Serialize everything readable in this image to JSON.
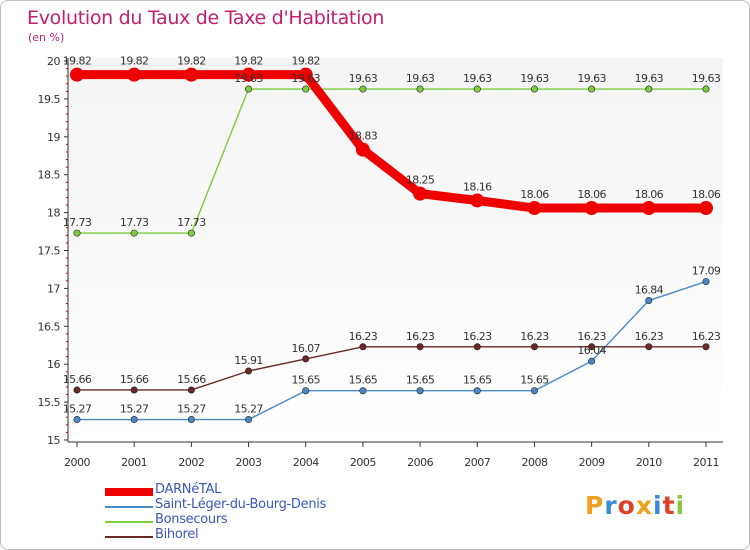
{
  "title": "Evolution du Taux de Taxe d'Habitation",
  "subtitle": "(en %)",
  "brand": {
    "text": "Proxiti",
    "letters": [
      "P",
      "r",
      "o",
      "x",
      "i",
      "t",
      "i"
    ],
    "colors": [
      "#f0a020",
      "#3b8ad8",
      "#e0402a",
      "#f0a020",
      "#3b8ad8",
      "#e0402a",
      "#8fc640"
    ]
  },
  "chart_data": {
    "type": "line",
    "title": "Evolution du Taux de Taxe d'Habitation",
    "ylabel": "(en %)",
    "xlabel": "",
    "x": [
      "2000",
      "2001",
      "2002",
      "2003",
      "2004",
      "2005",
      "2006",
      "2007",
      "2008",
      "2009",
      "2010",
      "2011"
    ],
    "ylim": [
      15,
      20
    ],
    "yticks": [
      "15",
      "15.5",
      "16",
      "16.5",
      "17",
      "17.5",
      "18",
      "18.5",
      "19",
      "19.5",
      "20"
    ],
    "yticks_values": [
      15,
      15.5,
      16,
      16.5,
      17,
      17.5,
      18,
      18.5,
      19,
      19.5,
      20
    ],
    "grid": false,
    "legend_position": "bottom-left",
    "series": [
      {
        "name": "DARNéTAL",
        "color": "#ee0000",
        "bold": true,
        "values": [
          19.82,
          19.82,
          19.82,
          19.82,
          19.82,
          18.83,
          18.25,
          18.16,
          18.06,
          18.06,
          18.06,
          18.06
        ],
        "labels": [
          "19.82",
          "19.82",
          "19.82",
          "19.82",
          "19.82",
          "18.83",
          "18.25",
          "18.16",
          "18.06",
          "18.06",
          "18.06",
          "18.06"
        ]
      },
      {
        "name": "Saint-Léger-du-Bourg-Denis",
        "color": "#4a88c8",
        "values": [
          15.27,
          15.27,
          15.27,
          15.27,
          15.65,
          15.65,
          15.65,
          15.65,
          15.65,
          16.04,
          16.84,
          17.09
        ],
        "labels": [
          "15.27",
          "15.27",
          "15.27",
          "15.27",
          "15.65",
          "15.65",
          "15.65",
          "15.65",
          "15.65",
          "16.04",
          "16.84",
          "17.09"
        ]
      },
      {
        "name": "Bonsecours",
        "color": "#7ccc3c",
        "values": [
          17.73,
          17.73,
          17.73,
          19.63,
          19.63,
          19.63,
          19.63,
          19.63,
          19.63,
          19.63,
          19.63,
          19.63
        ],
        "labels": [
          "17.73",
          "17.73",
          "17.73",
          "19.63",
          "19.63",
          "19.63",
          "19.63",
          "19.63",
          "19.63",
          "19.63",
          "19.63",
          "19.63"
        ]
      },
      {
        "name": "Bihorel",
        "color": "#6a2828",
        "values": [
          15.66,
          15.66,
          15.66,
          15.91,
          16.07,
          16.23,
          16.23,
          16.23,
          16.23,
          16.23,
          16.23,
          16.23
        ],
        "labels": [
          "15.66",
          "15.66",
          "15.66",
          "15.91",
          "16.07",
          "16.23",
          "16.23",
          "16.23",
          "16.23",
          "16.23",
          "16.23",
          "16.23"
        ]
      }
    ]
  }
}
